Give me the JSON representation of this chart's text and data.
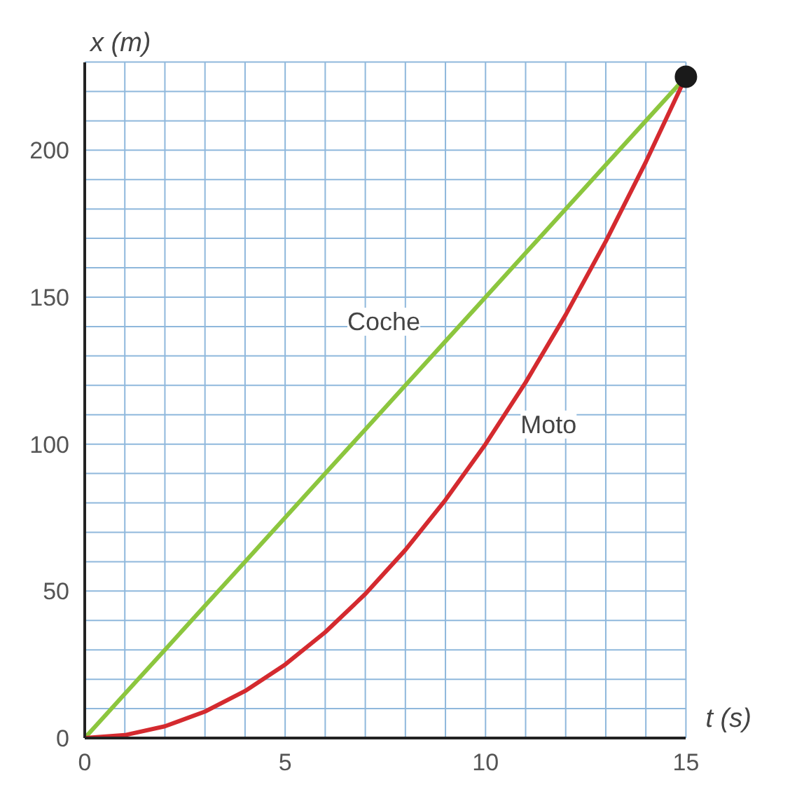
{
  "chart_data": {
    "type": "line",
    "xlabel": "t (s)",
    "ylabel": "x (m)",
    "x": [
      0,
      1,
      2,
      3,
      4,
      5,
      6,
      7,
      8,
      9,
      10,
      11,
      12,
      13,
      14,
      15
    ],
    "series": [
      {
        "name": "Coche",
        "color": "#8cc63e",
        "values": [
          0,
          15,
          30,
          45,
          60,
          75,
          90,
          105,
          120,
          135,
          150,
          165,
          180,
          195,
          210,
          225
        ]
      },
      {
        "name": "Moto",
        "color": "#d42a2f",
        "values": [
          0,
          1,
          4,
          9,
          16,
          25,
          36,
          49,
          64,
          81,
          100,
          121,
          144,
          169,
          196,
          225
        ]
      },
      {
        "type": "scatter",
        "marker": "circle",
        "color": "#1a1a1a",
        "x": [
          15
        ],
        "values": [
          225
        ]
      }
    ],
    "xlim": [
      0,
      15
    ],
    "ylim": [
      0,
      230
    ],
    "xticks": [
      0,
      {
        "value": 1,
        "label": null
      },
      {
        "value": 2,
        "label": null
      },
      {
        "value": 3,
        "label": null
      },
      {
        "value": 4,
        "label": null
      },
      5,
      {
        "value": 6,
        "label": null
      },
      {
        "value": 7,
        "label": null
      },
      {
        "value": 8,
        "label": null
      },
      {
        "value": 9,
        "label": null
      },
      10,
      {
        "value": 11,
        "label": null
      },
      {
        "value": 12,
        "label": null
      },
      {
        "value": 13,
        "label": null
      },
      {
        "value": 14,
        "label": null
      },
      15
    ],
    "yticks": [
      0,
      {
        "value": 10,
        "label": null
      },
      {
        "value": 20,
        "label": null
      },
      {
        "value": 30,
        "label": null
      },
      {
        "value": 40,
        "label": null
      },
      50,
      {
        "value": 60,
        "label": null
      },
      {
        "value": 70,
        "label": null
      },
      {
        "value": 80,
        "label": null
      },
      {
        "value": 90,
        "label": null
      },
      100,
      {
        "value": 110,
        "label": null
      },
      {
        "value": 120,
        "label": null
      },
      {
        "value": 130,
        "label": null
      },
      {
        "value": 140,
        "label": null
      },
      150,
      {
        "value": 160,
        "label": null
      },
      {
        "value": 170,
        "label": null
      },
      {
        "value": 180,
        "label": null
      },
      {
        "value": 190,
        "label": null
      },
      200,
      {
        "value": 210,
        "label": null
      },
      {
        "value": 220,
        "label": null
      },
      {
        "value": 230,
        "label": null
      }
    ],
    "grid": true,
    "marker": "none",
    "line_style": "solid"
  }
}
